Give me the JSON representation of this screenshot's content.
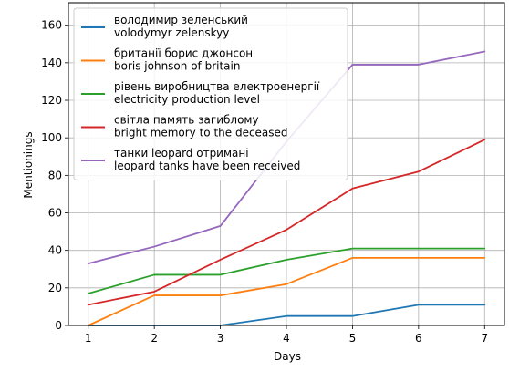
{
  "chart_data": {
    "type": "line",
    "xlabel": "Days",
    "ylabel": "Mentionings",
    "x": [
      1,
      2,
      3,
      4,
      5,
      6,
      7
    ],
    "xlim": [
      0.7,
      7.3
    ],
    "ylim": [
      0,
      172
    ],
    "xticks": [
      1,
      2,
      3,
      4,
      5,
      6,
      7
    ],
    "yticks": [
      0,
      20,
      40,
      60,
      80,
      100,
      120,
      140,
      160
    ],
    "grid": true,
    "legend_position": "top-left",
    "series": [
      {
        "name": "володимир зеленський\nvolodymyr zelenskyy",
        "color": "#1f77b4",
        "values": [
          0,
          0,
          0,
          5,
          5,
          11,
          11
        ]
      },
      {
        "name": "британії борис джонсон\nboris johnson of britain",
        "color": "#ff7f0e",
        "values": [
          0,
          16,
          16,
          22,
          36,
          36,
          36
        ]
      },
      {
        "name": "рівень виробництва електроенергії\nelectricity production level",
        "color": "#2ca02c",
        "values": [
          17,
          27,
          27,
          35,
          41,
          41,
          41
        ]
      },
      {
        "name": "світла память загиблому\nbright memory to the deceased",
        "color": "#d62728",
        "values": [
          11,
          18,
          35,
          51,
          73,
          82,
          99
        ]
      },
      {
        "name": "танки leopard отримані\nleopard tanks have been received",
        "color": "#9467bd",
        "values": [
          33,
          42,
          53,
          98,
          139,
          139,
          146
        ]
      }
    ]
  }
}
